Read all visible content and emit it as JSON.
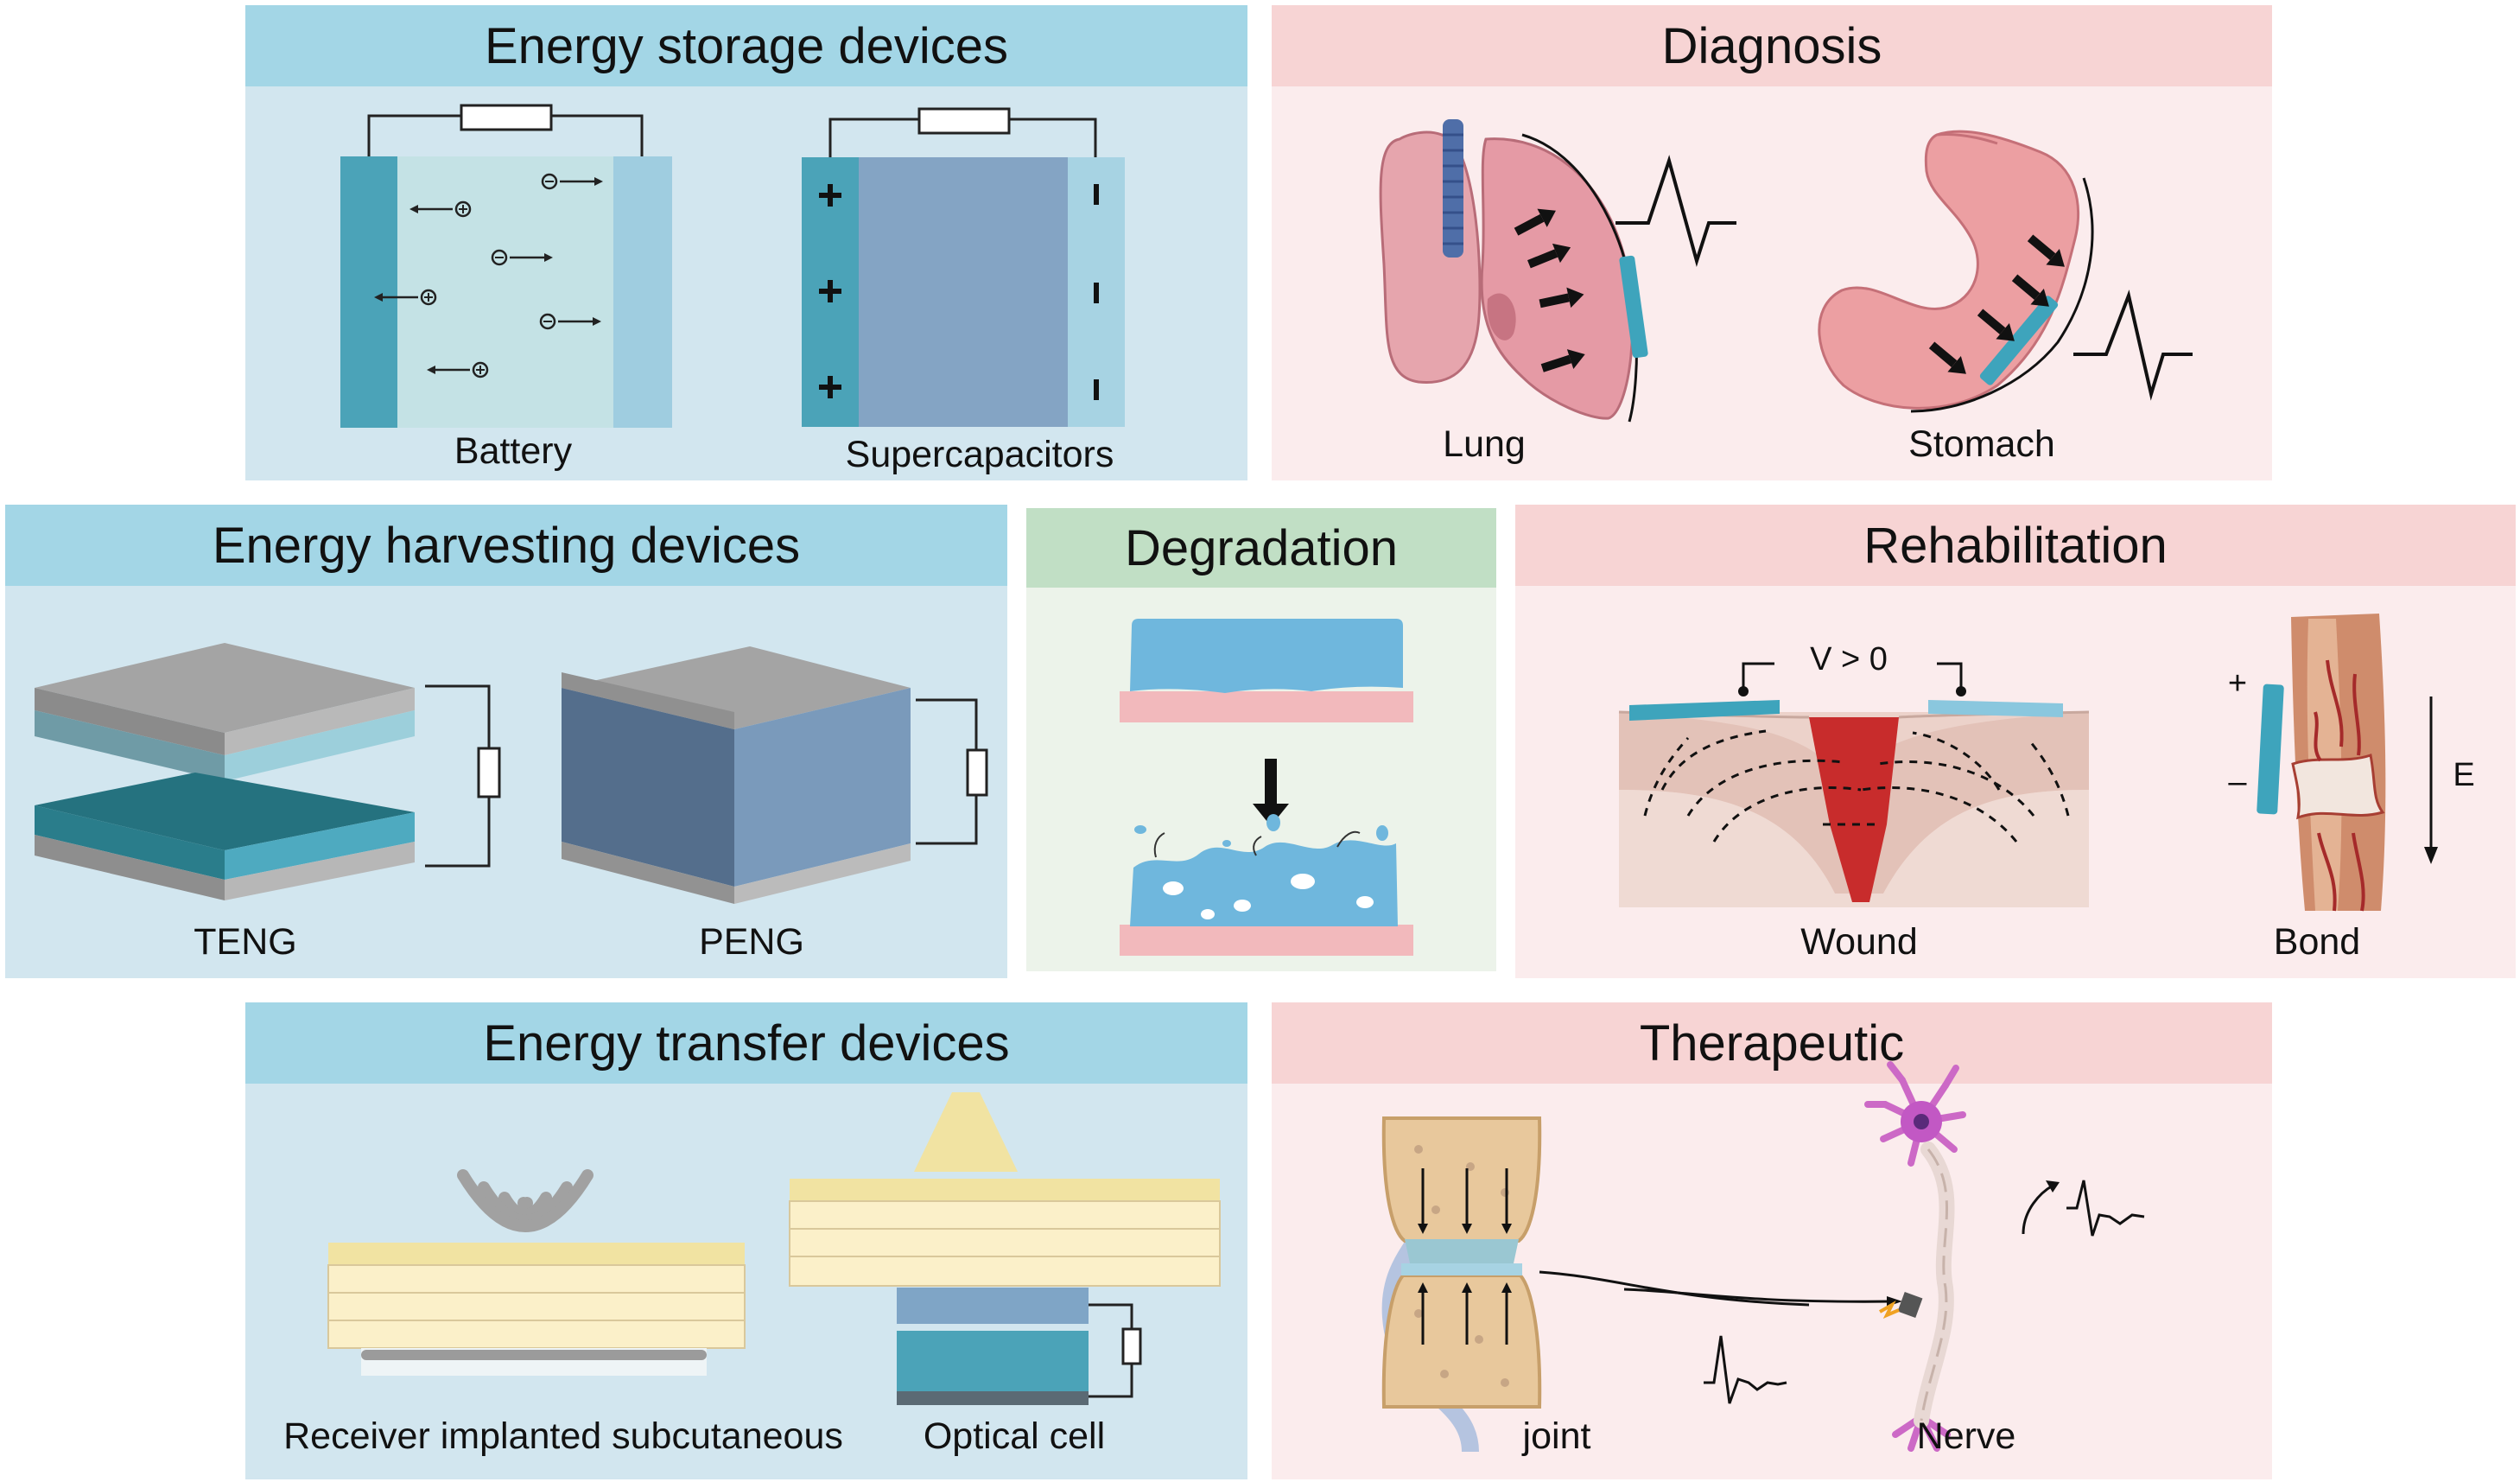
{
  "panels": {
    "storage": {
      "title": "Energy storage devices",
      "battery": "Battery",
      "supercap": "Supercapacitors"
    },
    "diagnosis": {
      "title": "Diagnosis",
      "lung": "Lung",
      "stomach": "Stomach"
    },
    "harvesting": {
      "title": "Energy harvesting devices",
      "teng": "TENG",
      "peng": "PENG"
    },
    "degradation": {
      "title": "Degradation"
    },
    "rehab": {
      "title": "Rehabilitation",
      "voltage": "V > 0",
      "wound": "Wound",
      "bond": "Bond",
      "field": "E",
      "plus": "+",
      "minus": "–"
    },
    "transfer": {
      "title": "Energy transfer devices",
      "receiver": "Receiver implanted subcutaneous",
      "optical": "Optical cell"
    },
    "therapeutic": {
      "title": "Therapeutic",
      "joint": "joint",
      "nerve": "Nerve"
    }
  },
  "colors": {
    "blue_header": "#a3d6e6",
    "blue_body": "#d2e6ef",
    "pink_header": "#f7d4d4",
    "pink_body": "#fbeced",
    "green_header": "#c1dfc5",
    "green_body": "#ecf3ea"
  }
}
